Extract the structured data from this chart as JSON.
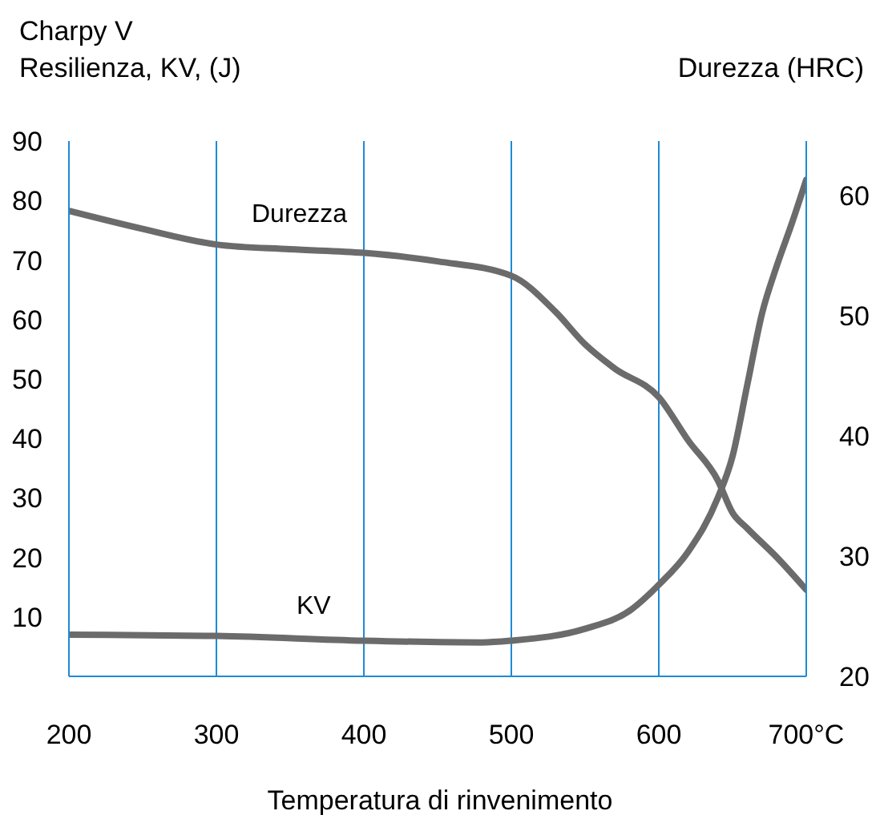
{
  "chart_data": {
    "type": "line",
    "ylabel": "Charpy V\nResilienza, KV, (J)",
    "y2label": "Durezza (HRC)",
    "xlabel": "Temperatura di rinvenimento",
    "series": [
      {
        "name": "Durezza",
        "color": "#6b6b6b",
        "axis": "y2",
        "x": [
          200,
          250,
          300,
          350,
          400,
          450,
          500,
          530,
          550,
          570,
          600,
          620,
          640,
          650,
          660,
          680,
          700
        ],
        "values": [
          58.7,
          57.2,
          55.9,
          55.5,
          55.2,
          54.5,
          53.3,
          50.3,
          47.6,
          45.6,
          43.2,
          39.6,
          36.3,
          33.6,
          32.3,
          29.9,
          27.2
        ]
      },
      {
        "name": "KV",
        "color": "#6b6b6b",
        "x": [
          200,
          300,
          400,
          480,
          500,
          550,
          580,
          600,
          620,
          640,
          650,
          660,
          670,
          680,
          690,
          700
        ],
        "values": [
          7,
          6.8,
          6,
          5.7,
          6,
          8,
          11,
          15.4,
          21,
          30,
          37,
          49,
          61,
          69,
          76,
          83.5
        ]
      }
    ],
    "xlim": [
      200,
      700
    ],
    "xticks": [
      200,
      300,
      400,
      500,
      600,
      {
        "value": 700,
        "label": "700°C"
      }
    ],
    "ylim": [
      0,
      90
    ],
    "yticks": [
      10,
      20,
      30,
      40,
      50,
      60,
      70,
      80,
      90
    ],
    "y2lim": [
      20,
      64.5
    ],
    "y2ticks": [
      20,
      30,
      40,
      50,
      60
    ],
    "grid": "x",
    "marker": "none",
    "line_style": "solid"
  }
}
